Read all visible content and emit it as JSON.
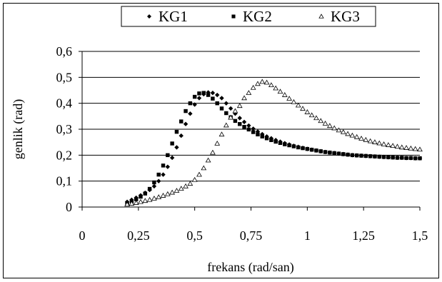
{
  "chart_data": {
    "type": "scatter",
    "title": "",
    "xlabel": "frekans (rad/san)",
    "ylabel": "genlik (rad)",
    "xlim": [
      0,
      1.5
    ],
    "ylim": [
      0,
      0.6
    ],
    "x_ticks": [
      0,
      0.25,
      0.5,
      0.75,
      1,
      1.25,
      1.5
    ],
    "y_ticks": [
      0,
      0.1,
      0.2,
      0.3,
      0.4,
      0.5,
      0.6
    ],
    "x_tick_labels": [
      "0",
      "0,25",
      "0,5",
      "0,75",
      "1",
      "1,25",
      "1,5"
    ],
    "y_tick_labels": [
      "0",
      "0,1",
      "0,2",
      "0,3",
      "0,4",
      "0,5",
      "0,6"
    ],
    "grid": "horizontal",
    "legend_position": "top",
    "series": [
      {
        "name": "KG1",
        "marker": "diamond",
        "x": [
          0.2,
          0.22,
          0.24,
          0.26,
          0.28,
          0.3,
          0.32,
          0.34,
          0.36,
          0.38,
          0.4,
          0.42,
          0.44,
          0.46,
          0.48,
          0.5,
          0.52,
          0.54,
          0.56,
          0.58,
          0.6,
          0.62,
          0.64,
          0.66,
          0.68,
          0.7,
          0.72,
          0.74,
          0.76,
          0.78,
          0.8,
          0.82,
          0.84,
          0.86,
          0.88,
          0.9,
          0.92,
          0.94,
          0.96,
          0.98,
          1.0,
          1.02,
          1.04,
          1.06,
          1.08,
          1.1,
          1.12,
          1.14,
          1.16,
          1.18,
          1.2,
          1.22,
          1.24,
          1.26,
          1.28,
          1.3,
          1.32,
          1.34,
          1.36,
          1.38,
          1.4,
          1.42,
          1.44,
          1.46,
          1.48,
          1.5
        ],
        "y": [
          0.02,
          0.028,
          0.036,
          0.045,
          0.055,
          0.066,
          0.08,
          0.1,
          0.125,
          0.155,
          0.19,
          0.23,
          0.275,
          0.32,
          0.36,
          0.395,
          0.42,
          0.435,
          0.442,
          0.44,
          0.432,
          0.42,
          0.4,
          0.38,
          0.36,
          0.343,
          0.328,
          0.314,
          0.302,
          0.291,
          0.281,
          0.272,
          0.265,
          0.258,
          0.252,
          0.246,
          0.241,
          0.236,
          0.232,
          0.228,
          0.224,
          0.221,
          0.218,
          0.215,
          0.212,
          0.21,
          0.208,
          0.206,
          0.204,
          0.202,
          0.2,
          0.199,
          0.198,
          0.197,
          0.196,
          0.195,
          0.194,
          0.193,
          0.192,
          0.191,
          0.19,
          0.19,
          0.189,
          0.189,
          0.188,
          0.188
        ]
      },
      {
        "name": "KG2",
        "marker": "square",
        "x": [
          0.2,
          0.22,
          0.24,
          0.26,
          0.28,
          0.3,
          0.32,
          0.34,
          0.36,
          0.38,
          0.4,
          0.42,
          0.44,
          0.46,
          0.48,
          0.5,
          0.52,
          0.54,
          0.56,
          0.58,
          0.6,
          0.62,
          0.64,
          0.66,
          0.68,
          0.7,
          0.72,
          0.74,
          0.76,
          0.78,
          0.8,
          0.82,
          0.84,
          0.86,
          0.88,
          0.9,
          0.92,
          0.94,
          0.96,
          0.98,
          1.0,
          1.02,
          1.04,
          1.06,
          1.08,
          1.1,
          1.12,
          1.14,
          1.16,
          1.18,
          1.2,
          1.22,
          1.24,
          1.26,
          1.28,
          1.3,
          1.32,
          1.34,
          1.36,
          1.38,
          1.4,
          1.42,
          1.44,
          1.46,
          1.48,
          1.5
        ],
        "y": [
          0.015,
          0.022,
          0.03,
          0.04,
          0.052,
          0.07,
          0.095,
          0.125,
          0.16,
          0.2,
          0.245,
          0.29,
          0.33,
          0.37,
          0.4,
          0.425,
          0.438,
          0.44,
          0.432,
          0.418,
          0.4,
          0.38,
          0.362,
          0.346,
          0.332,
          0.32,
          0.309,
          0.299,
          0.289,
          0.28,
          0.272,
          0.265,
          0.258,
          0.252,
          0.247,
          0.242,
          0.238,
          0.234,
          0.23,
          0.227,
          0.224,
          0.221,
          0.218,
          0.215,
          0.212,
          0.21,
          0.208,
          0.206,
          0.204,
          0.202,
          0.2,
          0.199,
          0.198,
          0.197,
          0.196,
          0.195,
          0.194,
          0.193,
          0.192,
          0.191,
          0.19,
          0.19,
          0.189,
          0.189,
          0.188,
          0.188
        ]
      },
      {
        "name": "KG3",
        "marker": "triangle-open",
        "x": [
          0.2,
          0.22,
          0.24,
          0.26,
          0.28,
          0.3,
          0.32,
          0.34,
          0.36,
          0.38,
          0.4,
          0.42,
          0.44,
          0.46,
          0.48,
          0.5,
          0.52,
          0.54,
          0.56,
          0.58,
          0.6,
          0.62,
          0.64,
          0.66,
          0.68,
          0.7,
          0.72,
          0.74,
          0.76,
          0.78,
          0.8,
          0.82,
          0.84,
          0.86,
          0.88,
          0.9,
          0.92,
          0.94,
          0.96,
          0.98,
          1.0,
          1.02,
          1.04,
          1.06,
          1.08,
          1.1,
          1.12,
          1.14,
          1.16,
          1.18,
          1.2,
          1.22,
          1.24,
          1.26,
          1.28,
          1.3,
          1.32,
          1.34,
          1.36,
          1.38,
          1.4,
          1.42,
          1.44,
          1.46,
          1.48,
          1.5
        ],
        "y": [
          0.01,
          0.013,
          0.016,
          0.02,
          0.024,
          0.028,
          0.033,
          0.038,
          0.044,
          0.05,
          0.056,
          0.063,
          0.071,
          0.08,
          0.09,
          0.105,
          0.125,
          0.15,
          0.18,
          0.21,
          0.245,
          0.28,
          0.315,
          0.345,
          0.37,
          0.39,
          0.42,
          0.44,
          0.46,
          0.475,
          0.483,
          0.48,
          0.47,
          0.458,
          0.445,
          0.432,
          0.418,
          0.405,
          0.392,
          0.379,
          0.366,
          0.354,
          0.343,
          0.332,
          0.322,
          0.313,
          0.304,
          0.296,
          0.289,
          0.282,
          0.276,
          0.27,
          0.264,
          0.259,
          0.254,
          0.25,
          0.246,
          0.242,
          0.239,
          0.236,
          0.233,
          0.23,
          0.228,
          0.226,
          0.224,
          0.222
        ]
      }
    ]
  }
}
